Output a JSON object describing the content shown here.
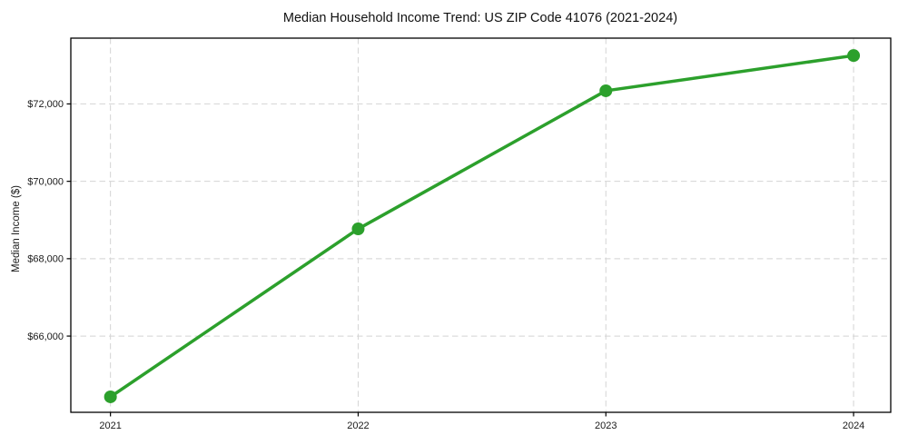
{
  "chart_data": {
    "type": "line",
    "title": "Median Household Income Trend: US ZIP Code 41076 (2021-2024)",
    "xlabel": "",
    "ylabel": "Median Income ($)",
    "categories": [
      "2021",
      "2022",
      "2023",
      "2024"
    ],
    "series": [
      {
        "name": "Median Household Income",
        "values": [
          64430,
          68770,
          72340,
          73250
        ],
        "color": "#2ca02c",
        "marker": "circle"
      }
    ],
    "yticks": {
      "values": [
        66000,
        68000,
        70000,
        72000
      ],
      "labels": [
        "$66,000",
        "$68,000",
        "$70,000",
        "$72,000"
      ]
    },
    "xtick_labels": [
      "2021",
      "2022",
      "2023",
      "2024"
    ],
    "xlim_index": [
      -0.16,
      3.15
    ],
    "ylim": [
      64030,
      73700
    ],
    "grid": {
      "show": true,
      "axis": "both",
      "style": "dashed",
      "color": "#d4d4d4"
    },
    "legend": null,
    "colors": {
      "line": "#2ca02c",
      "marker": "#2ca02c",
      "spine": "#000000",
      "tick_label": "#1a1a1a",
      "background": "#ffffff"
    }
  }
}
